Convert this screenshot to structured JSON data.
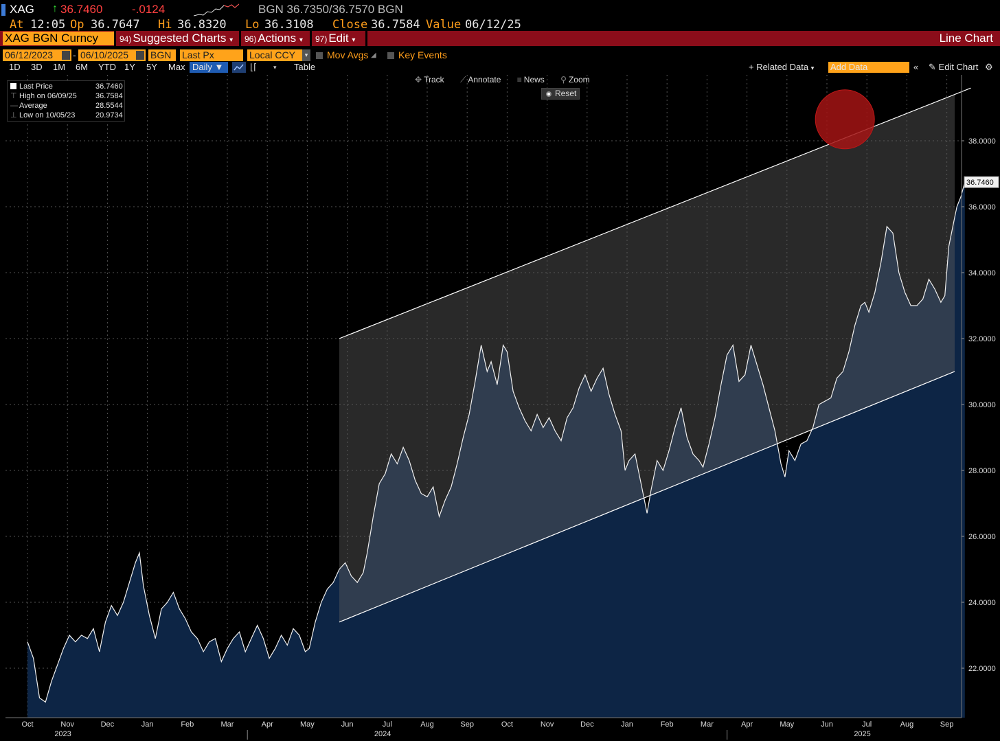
{
  "header": {
    "ticker": "XAG",
    "last": "36.7460",
    "change": "-.0124",
    "quote": "BGN 36.7350/36.7570 BGN",
    "at_label": "At",
    "at_value": "12:05",
    "op_label": "Op",
    "op_value": "36.7647",
    "hi_label": "Hi",
    "hi_value": "36.8320",
    "lo_label": "Lo",
    "lo_value": "36.3108",
    "close_label": "Close",
    "close_value": "36.7584",
    "value_label": "Value",
    "value_value": "06/12/25"
  },
  "menubar": {
    "security": "XAG BGN Curncy",
    "suggested_num": "94)",
    "suggested": "Suggested Charts",
    "actions_num": "96)",
    "actions": "Actions",
    "edit_num": "97)",
    "edit": "Edit",
    "chart_type": "Line Chart"
  },
  "settings": {
    "start_date": "06/12/2023",
    "end_date": "06/10/2025",
    "source": "BGN",
    "field": "Last Px",
    "currency": "Local CCY",
    "mov_avgs": "Mov Avgs",
    "key_events": "Key Events"
  },
  "toolbar": {
    "periods": [
      "1D",
      "3D",
      "1M",
      "6M",
      "YTD",
      "1Y",
      "5Y",
      "Max"
    ],
    "frequency": "Daily",
    "table": "Table",
    "related_data": "Related Data",
    "add_data_placeholder": "Add Data",
    "edit_chart": "Edit Chart"
  },
  "chart_tools": {
    "track": "Track",
    "annotate": "Annotate",
    "news": "News",
    "zoom": "Zoom",
    "reset": "Reset"
  },
  "legend": {
    "last_price_label": "Last Price",
    "last_price_value": "36.7460",
    "high_label": "High on 06/09/25",
    "high_value": "36.7584",
    "average_label": "Average",
    "average_value": "28.5544",
    "low_label": "Low on 10/05/23",
    "low_value": "20.9734"
  },
  "colors": {
    "up_arrow": "#33dd33",
    "last_price": "#ff4040",
    "change": "#ff4040",
    "orange": "#ffa31a",
    "menubar": "#8b0d1a",
    "area_fill": "#0d2545",
    "channel_fill": "#5a5a5a",
    "highlight_circle": "#a31414"
  },
  "chart_data": {
    "type": "area",
    "ylim": [
      20.5,
      40.0
    ],
    "y_ticks": [
      22,
      24,
      26,
      28,
      30,
      32,
      34,
      36,
      38
    ],
    "y_tick_labels": [
      "22.0000",
      "24.0000",
      "26.0000",
      "28.0000",
      "30.0000",
      "32.0000",
      "34.0000",
      "36.0000",
      "38.0000"
    ],
    "last_value_label": "36.7460",
    "x_month_labels": [
      "Oct",
      "Nov",
      "Dec",
      "Jan",
      "Feb",
      "Mar",
      "Apr",
      "May",
      "Jun",
      "Jul",
      "Aug",
      "Sep",
      "Oct",
      "Nov",
      "Dec",
      "Jan",
      "Feb",
      "Mar",
      "Apr",
      "May",
      "Jun",
      "Jul",
      "Aug",
      "Sep"
    ],
    "x_year_labels": [
      "2023",
      "2024",
      "2025"
    ],
    "x_month_index_start": 0,
    "x_month_index_end": 23.6,
    "x_year_positions": [
      0.8,
      8.8,
      20.8
    ],
    "series": [
      {
        "points": [
          [
            0.0,
            22.8
          ],
          [
            0.15,
            22.3
          ],
          [
            0.3,
            21.1
          ],
          [
            0.45,
            20.97
          ],
          [
            0.6,
            21.6
          ],
          [
            0.75,
            22.1
          ],
          [
            0.9,
            22.6
          ],
          [
            1.05,
            23.0
          ],
          [
            1.2,
            22.8
          ],
          [
            1.35,
            23.0
          ],
          [
            1.5,
            22.9
          ],
          [
            1.65,
            23.2
          ],
          [
            1.8,
            22.5
          ],
          [
            1.95,
            23.4
          ],
          [
            2.1,
            23.9
          ],
          [
            2.25,
            23.6
          ],
          [
            2.4,
            24.0
          ],
          [
            2.55,
            24.6
          ],
          [
            2.7,
            25.2
          ],
          [
            2.8,
            25.5
          ],
          [
            2.9,
            24.5
          ],
          [
            3.05,
            23.6
          ],
          [
            3.2,
            22.9
          ],
          [
            3.35,
            23.8
          ],
          [
            3.5,
            24.0
          ],
          [
            3.65,
            24.3
          ],
          [
            3.8,
            23.8
          ],
          [
            3.95,
            23.5
          ],
          [
            4.1,
            23.1
          ],
          [
            4.25,
            22.9
          ],
          [
            4.4,
            22.5
          ],
          [
            4.55,
            22.8
          ],
          [
            4.7,
            22.9
          ],
          [
            4.85,
            22.2
          ],
          [
            5.0,
            22.6
          ],
          [
            5.15,
            22.9
          ],
          [
            5.3,
            23.1
          ],
          [
            5.45,
            22.5
          ],
          [
            5.6,
            22.9
          ],
          [
            5.75,
            23.3
          ],
          [
            5.9,
            22.9
          ],
          [
            6.05,
            22.3
          ],
          [
            6.2,
            22.6
          ],
          [
            6.35,
            23.0
          ],
          [
            6.5,
            22.7
          ],
          [
            6.65,
            23.2
          ],
          [
            6.8,
            23.0
          ],
          [
            6.95,
            22.5
          ],
          [
            7.05,
            22.6
          ],
          [
            7.2,
            23.4
          ],
          [
            7.35,
            24.0
          ],
          [
            7.5,
            24.4
          ],
          [
            7.65,
            24.6
          ],
          [
            7.8,
            25.0
          ],
          [
            7.95,
            25.2
          ],
          [
            8.1,
            24.8
          ],
          [
            8.25,
            24.6
          ],
          [
            8.4,
            24.9
          ],
          [
            8.5,
            25.5
          ],
          [
            8.65,
            26.6
          ],
          [
            8.8,
            27.6
          ],
          [
            8.95,
            27.9
          ],
          [
            9.1,
            28.5
          ],
          [
            9.25,
            28.2
          ],
          [
            9.4,
            28.7
          ],
          [
            9.55,
            28.3
          ],
          [
            9.7,
            27.7
          ],
          [
            9.85,
            27.3
          ],
          [
            10.0,
            27.2
          ],
          [
            10.15,
            27.5
          ],
          [
            10.3,
            26.6
          ],
          [
            10.45,
            27.1
          ],
          [
            10.6,
            27.5
          ],
          [
            10.75,
            28.2
          ],
          [
            10.9,
            29.0
          ],
          [
            11.05,
            29.7
          ],
          [
            11.2,
            30.7
          ],
          [
            11.35,
            31.8
          ],
          [
            11.5,
            31.0
          ],
          [
            11.6,
            31.3
          ],
          [
            11.75,
            30.6
          ],
          [
            11.9,
            31.8
          ],
          [
            12.0,
            31.6
          ],
          [
            12.15,
            30.4
          ],
          [
            12.3,
            29.9
          ],
          [
            12.45,
            29.5
          ],
          [
            12.6,
            29.2
          ],
          [
            12.75,
            29.7
          ],
          [
            12.9,
            29.3
          ],
          [
            13.05,
            29.6
          ],
          [
            13.2,
            29.2
          ],
          [
            13.35,
            28.9
          ],
          [
            13.5,
            29.6
          ],
          [
            13.65,
            29.9
          ],
          [
            13.8,
            30.5
          ],
          [
            13.95,
            30.9
          ],
          [
            14.1,
            30.4
          ],
          [
            14.25,
            30.8
          ],
          [
            14.4,
            31.1
          ],
          [
            14.55,
            30.3
          ],
          [
            14.7,
            29.7
          ],
          [
            14.85,
            29.2
          ],
          [
            14.95,
            28.0
          ],
          [
            15.05,
            28.3
          ],
          [
            15.2,
            28.5
          ],
          [
            15.35,
            27.6
          ],
          [
            15.5,
            26.7
          ],
          [
            15.6,
            27.4
          ],
          [
            15.75,
            28.3
          ],
          [
            15.9,
            28.0
          ],
          [
            16.05,
            28.6
          ],
          [
            16.2,
            29.3
          ],
          [
            16.35,
            29.9
          ],
          [
            16.5,
            29.0
          ],
          [
            16.65,
            28.5
          ],
          [
            16.8,
            28.3
          ],
          [
            16.9,
            28.1
          ],
          [
            17.05,
            28.8
          ],
          [
            17.2,
            29.6
          ],
          [
            17.35,
            30.6
          ],
          [
            17.5,
            31.5
          ],
          [
            17.65,
            31.8
          ],
          [
            17.8,
            30.7
          ],
          [
            17.95,
            30.9
          ],
          [
            18.1,
            31.8
          ],
          [
            18.25,
            31.2
          ],
          [
            18.4,
            30.6
          ],
          [
            18.55,
            29.9
          ],
          [
            18.7,
            29.2
          ],
          [
            18.85,
            28.2
          ],
          [
            18.95,
            27.8
          ],
          [
            19.05,
            28.6
          ],
          [
            19.2,
            28.3
          ],
          [
            19.35,
            28.8
          ],
          [
            19.5,
            28.9
          ],
          [
            19.65,
            29.3
          ],
          [
            19.8,
            30.0
          ],
          [
            19.95,
            30.1
          ],
          [
            20.1,
            30.2
          ],
          [
            20.25,
            30.8
          ],
          [
            20.4,
            31.0
          ],
          [
            20.55,
            31.6
          ],
          [
            20.7,
            32.4
          ],
          [
            20.85,
            33.0
          ],
          [
            20.95,
            33.1
          ],
          [
            21.05,
            32.8
          ],
          [
            21.2,
            33.4
          ],
          [
            21.35,
            34.3
          ],
          [
            21.5,
            35.4
          ],
          [
            21.65,
            35.2
          ],
          [
            21.8,
            34.0
          ],
          [
            21.95,
            33.4
          ],
          [
            22.1,
            33.0
          ],
          [
            22.25,
            33.0
          ],
          [
            22.4,
            33.2
          ],
          [
            22.55,
            33.8
          ],
          [
            22.7,
            33.5
          ],
          [
            22.85,
            33.1
          ],
          [
            22.95,
            33.3
          ],
          [
            23.05,
            34.8
          ],
          [
            23.15,
            35.4
          ],
          [
            23.25,
            36.0
          ],
          [
            23.35,
            36.3
          ],
          [
            23.45,
            36.746
          ]
        ]
      }
    ],
    "channel": {
      "upper": [
        [
          7.8,
          32.0
        ],
        [
          23.6,
          39.6
        ]
      ],
      "lower": [
        [
          7.8,
          23.4
        ],
        [
          23.6,
          31.2
        ]
      ],
      "extended_upper_end": [
        23.6,
        39.6
      ],
      "extended_lower_end": [
        24.4,
        33.2
      ]
    },
    "highlight": {
      "x": 20.45,
      "y": 38.65
    },
    "grid": true
  }
}
